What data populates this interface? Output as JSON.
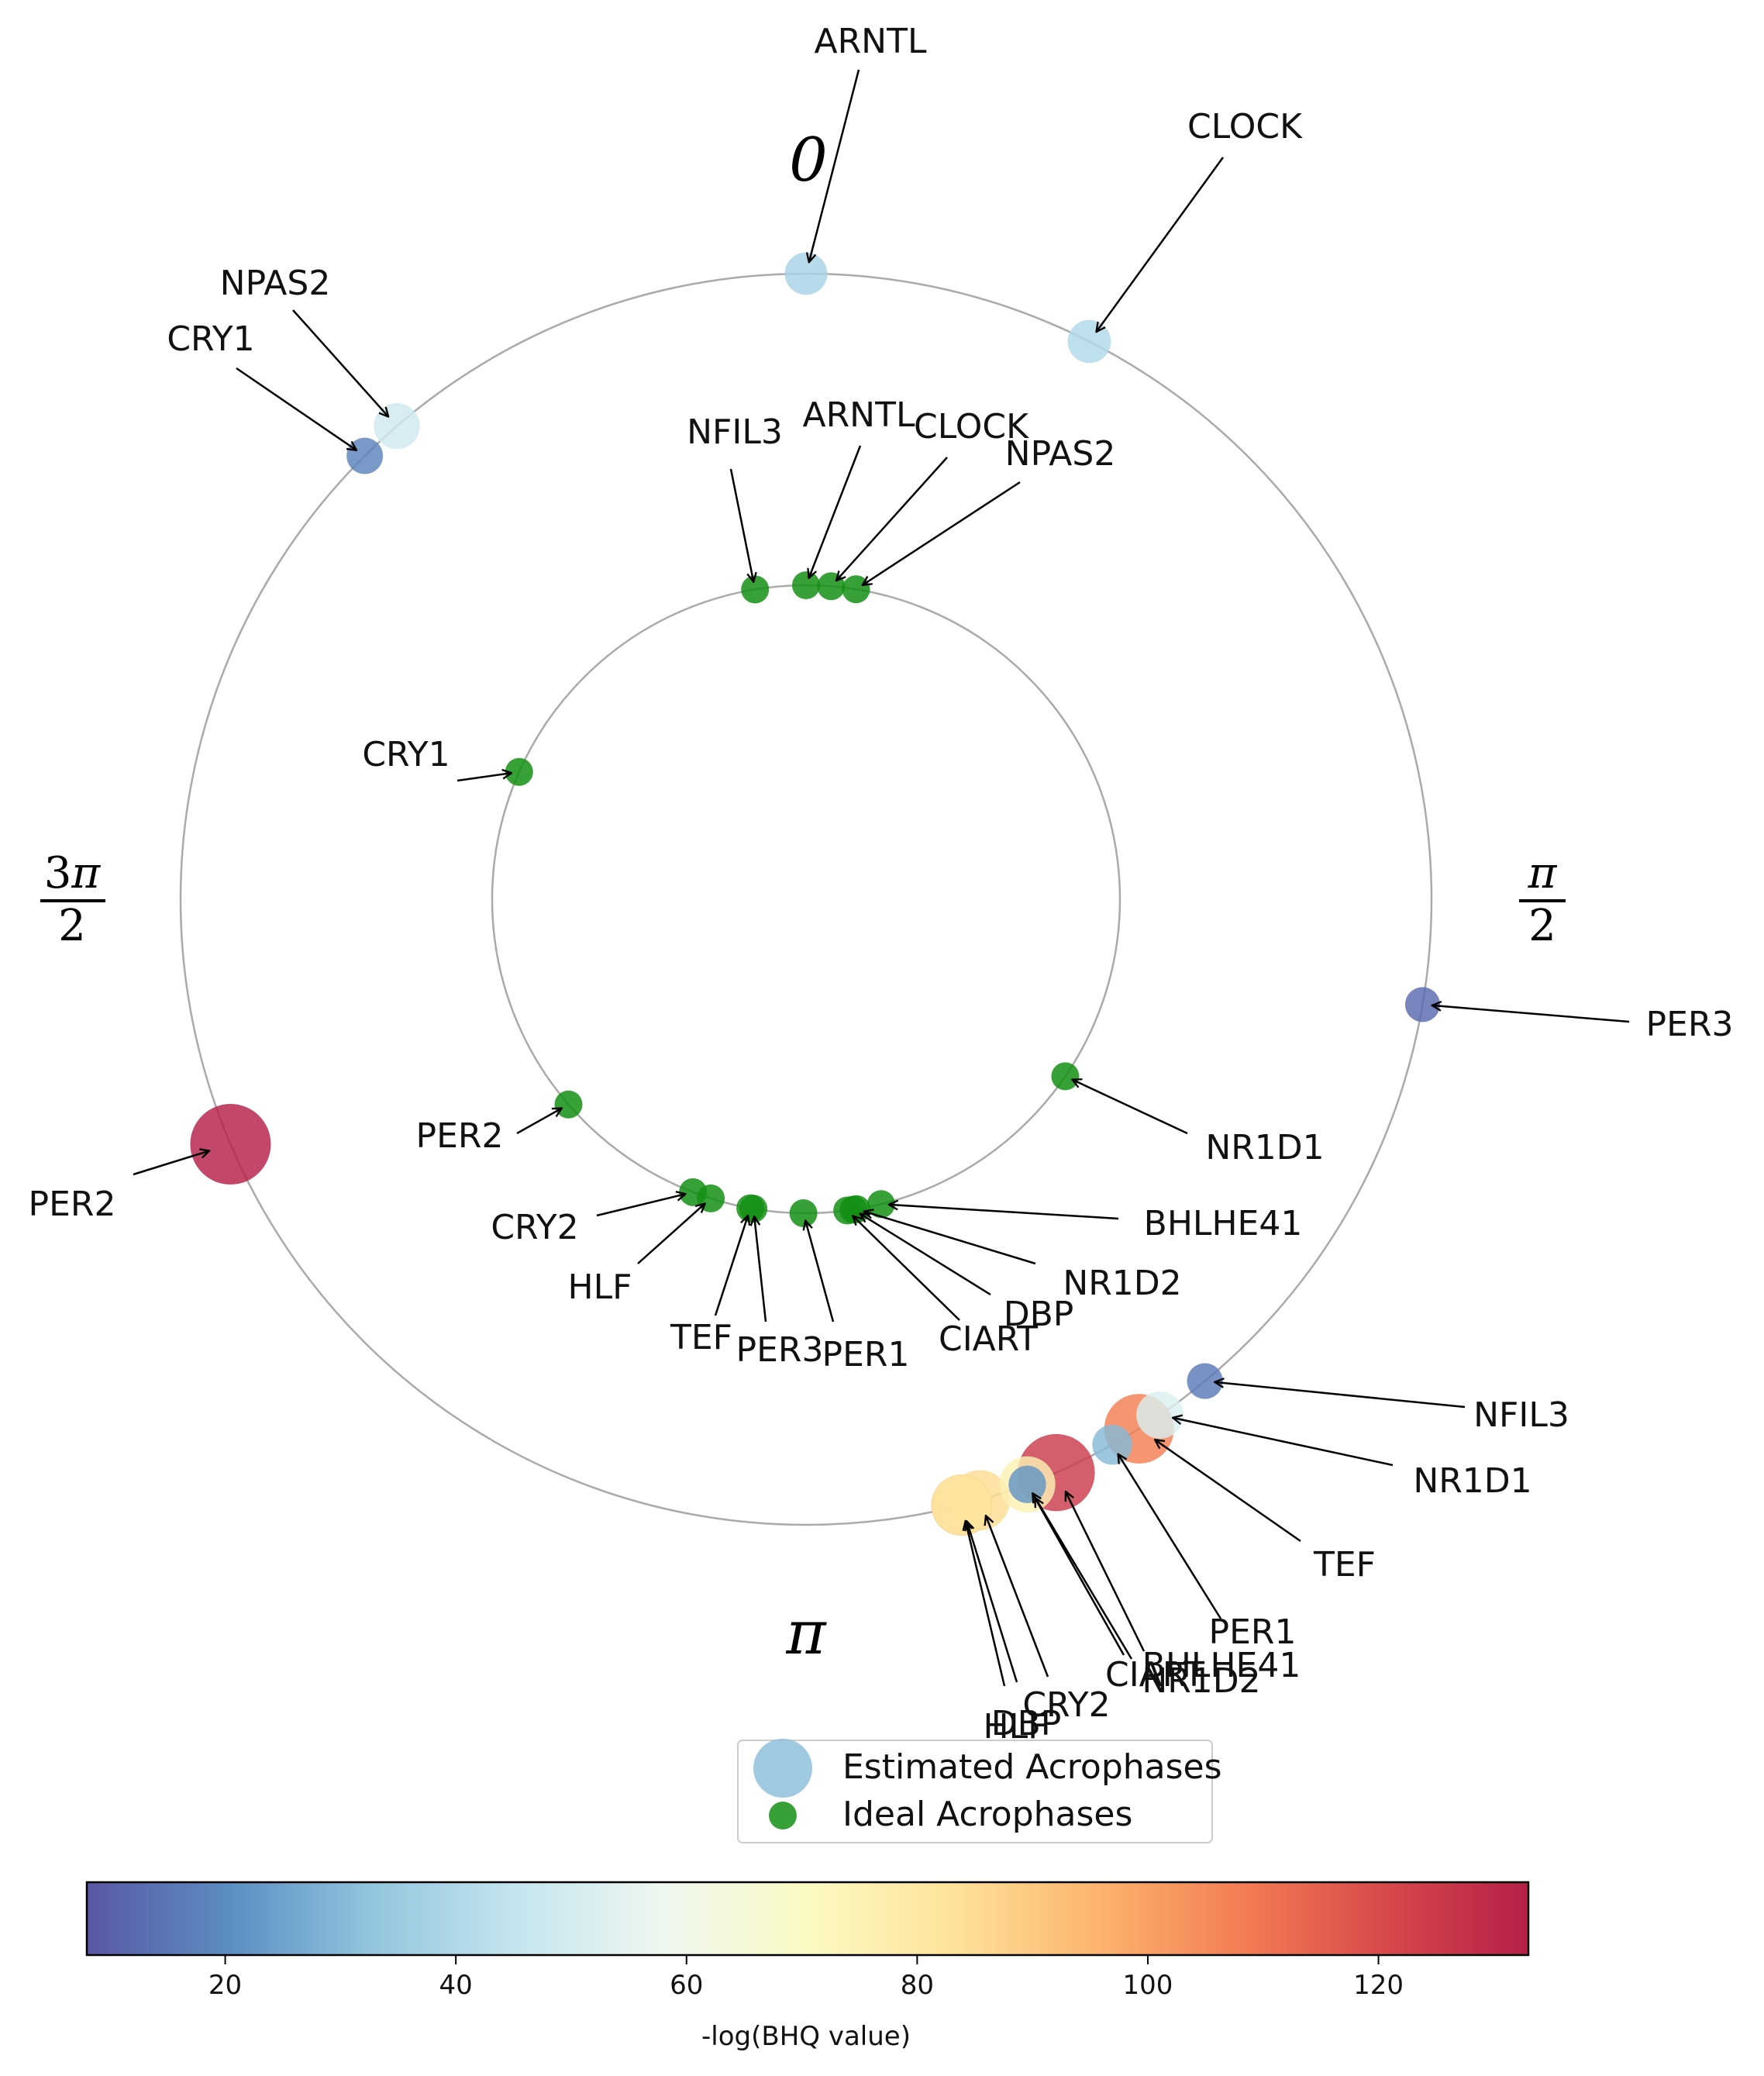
{
  "chart_data": {
    "type": "scatter",
    "subtype": "polar-acrophase",
    "direction_labels": {
      "top": "0",
      "right": "π/2",
      "bottom": "π",
      "left": "3π/2"
    },
    "outer_ring": {
      "series_name": "Estimated Acrophases",
      "points": [
        {
          "gene": "ARNTL",
          "phase": 0.0,
          "neglog_bhq": 38
        },
        {
          "gene": "CLOCK",
          "phase": 0.47,
          "neglog_bhq": 40
        },
        {
          "gene": "NPAS2",
          "phase": 5.57,
          "neglog_bhq": 48
        },
        {
          "gene": "CRY1",
          "phase": 5.5,
          "neglog_bhq": 18
        },
        {
          "gene": "PER3",
          "phase": 1.74,
          "neglog_bhq": 12
        },
        {
          "gene": "PER2",
          "phase": 4.31,
          "neglog_bhq": 133
        },
        {
          "gene": "NFIL3",
          "phase": 2.45,
          "neglog_bhq": 16
        },
        {
          "gene": "NR1D1",
          "phase": 2.54,
          "neglog_bhq": 52
        },
        {
          "gene": "TEF",
          "phase": 2.58,
          "neglog_bhq": 108
        },
        {
          "gene": "PER1",
          "phase": 2.63,
          "neglog_bhq": 30
        },
        {
          "gene": "BHLHE41",
          "phase": 2.73,
          "neglog_bhq": 125
        },
        {
          "gene": "NR1D2",
          "phase": 2.78,
          "neglog_bhq": 22
        },
        {
          "gene": "CIART",
          "phase": 2.78,
          "neglog_bhq": 75
        },
        {
          "gene": "CRY2",
          "phase": 2.86,
          "neglog_bhq": 85
        },
        {
          "gene": "DBP",
          "phase": 2.89,
          "neglog_bhq": 88
        },
        {
          "gene": "HLF",
          "phase": 2.89,
          "neglog_bhq": 82
        }
      ]
    },
    "inner_ring": {
      "series_name": "Ideal Acrophases",
      "points": [
        {
          "gene": "NFIL3",
          "phase": 6.12
        },
        {
          "gene": "ARNTL",
          "phase": 0.0
        },
        {
          "gene": "CLOCK",
          "phase": 0.08
        },
        {
          "gene": "NPAS2",
          "phase": 0.16
        },
        {
          "gene": "CRY1",
          "phase": 5.13
        },
        {
          "gene": "PER2",
          "phase": 4.0
        },
        {
          "gene": "NR1D1",
          "phase": 2.17
        },
        {
          "gene": "CRY2",
          "phase": 3.51
        },
        {
          "gene": "HLF",
          "phase": 3.45
        },
        {
          "gene": "TEF",
          "phase": 3.32
        },
        {
          "gene": "PER3",
          "phase": 3.31
        },
        {
          "gene": "PER1",
          "phase": 3.15
        },
        {
          "gene": "CIART",
          "phase": 3.01
        },
        {
          "gene": "DBP",
          "phase": 2.99
        },
        {
          "gene": "NR1D2",
          "phase": 2.98
        },
        {
          "gene": "BHLHE41",
          "phase": 2.9
        }
      ]
    },
    "legend": {
      "placement": "bottom-center",
      "entries": [
        "Estimated Acrophases",
        "Ideal Acrophases"
      ]
    },
    "colorbar": {
      "label": "-log(BHQ value)",
      "range": [
        8,
        133
      ],
      "ticks": [
        "20",
        "40",
        "60",
        "80",
        "100",
        "120"
      ],
      "colormap": "Spectral_r"
    },
    "colors": {
      "ideal": "#148f14",
      "ring": "#aaaaaa"
    }
  }
}
